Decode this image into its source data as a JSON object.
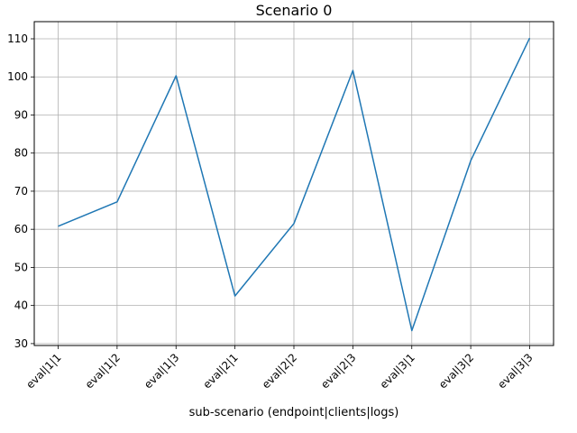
{
  "chart_data": {
    "type": "line",
    "title": "Scenario 0",
    "xlabel": "sub-scenario (endpoint|clients|logs)",
    "ylabel": "",
    "categories": [
      "eval|1|1",
      "eval|1|2",
      "eval|1|3",
      "eval|2|1",
      "eval|2|2",
      "eval|2|3",
      "eval|3|1",
      "eval|3|2",
      "eval|3|3"
    ],
    "series": [
      {
        "values": [
          60.8,
          67.2,
          100.3,
          42.5,
          61.5,
          101.7,
          33.4,
          78.0,
          110.2
        ],
        "color": "#1f77b4"
      }
    ],
    "ylim": [
      29.5,
      114.5
    ],
    "yticks": [
      30,
      40,
      50,
      60,
      70,
      80,
      90,
      100,
      110
    ],
    "grid": true
  }
}
